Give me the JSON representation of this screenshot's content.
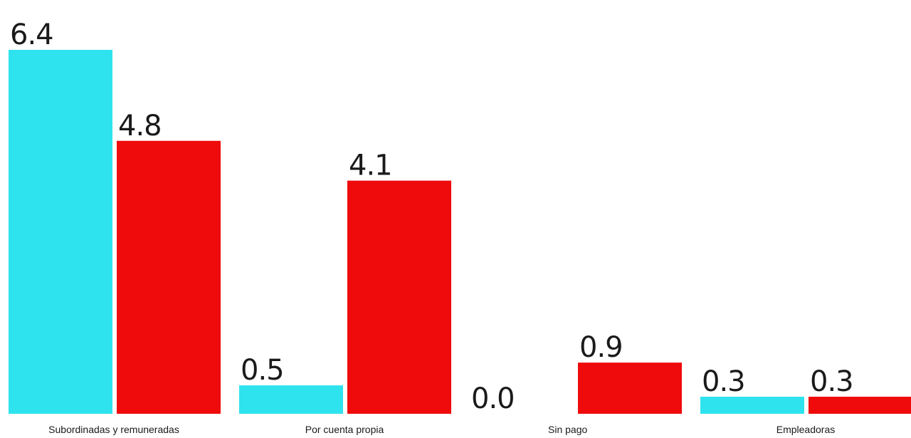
{
  "chart_data": {
    "type": "bar",
    "categories": [
      "Subordinadas y remuneradas",
      "Por cuenta propia",
      "Sin pago",
      "Empleadoras"
    ],
    "series": [
      {
        "values": [
          6.4,
          0.5,
          0.0,
          0.3
        ],
        "color": "#2ee3ee"
      },
      {
        "values": [
          4.8,
          4.1,
          0.9,
          0.3
        ],
        "color": "#ef0b0b"
      }
    ],
    "data_labels": [
      [
        "6.4",
        "0.5",
        "0.0",
        "0.3"
      ],
      [
        "4.8",
        "4.1",
        "0.9",
        "0.3"
      ]
    ],
    "ylim": [
      0,
      6.4
    ],
    "grid": false,
    "legend": "none"
  }
}
